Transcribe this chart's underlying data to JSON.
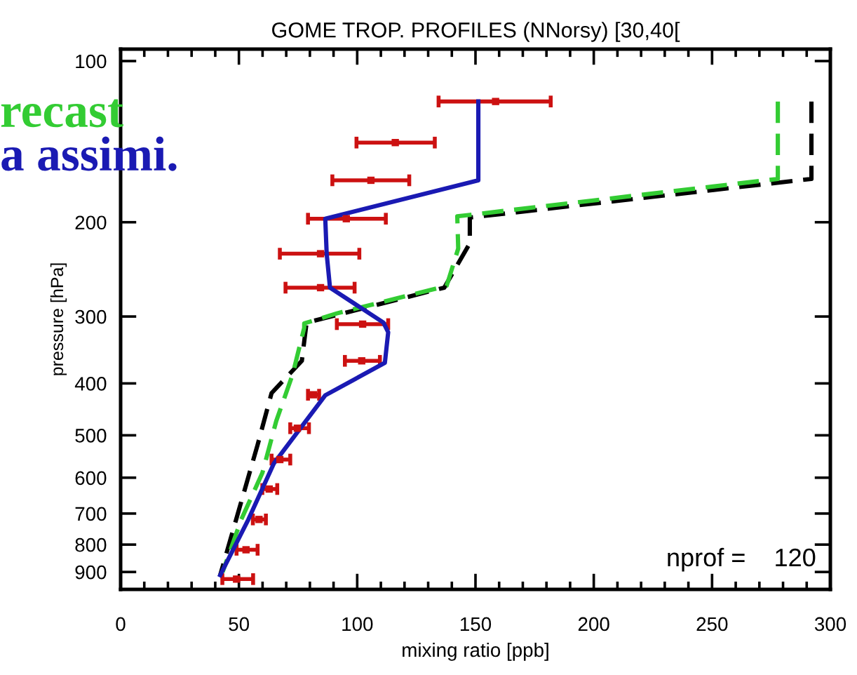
{
  "chart_data": {
    "type": "line",
    "title": "GOME TROP. PROFILES (NNorsy) [30,40[",
    "xlabel": "mixing ratio [ppb]",
    "ylabel": "pressure [hPa]",
    "series": [
      {
        "type": "scatter",
        "marker": "square",
        "color": "#cc1111",
        "x": [
          158.5,
          116.1,
          105.8,
          95.4,
          84.5,
          84.5,
          102.3,
          101.9,
          81.5,
          74.7,
          67.3,
          62.8,
          58.5,
          53.0,
          49.0
        ],
        "values": [
          119,
          142,
          167,
          197,
          229,
          265,
          310,
          363,
          420,
          485,
          555,
          630,
          718,
          818,
          928
        ],
        "xerrors": [
          [
            134.4,
            181.8
          ],
          [
            99.7,
            132.8
          ],
          [
            89.5,
            122.0
          ],
          [
            79.2,
            112.1
          ],
          [
            67.3,
            100.9
          ],
          [
            69.7,
            98.9
          ],
          [
            91.4,
            113.1
          ],
          [
            94.8,
            109.6
          ],
          [
            79.2,
            83.9
          ],
          [
            71.7,
            79.6
          ],
          [
            63.8,
            71.7
          ],
          [
            59.9,
            66.2
          ],
          [
            55.9,
            61.4
          ],
          [
            49.0,
            57.9
          ],
          [
            43.0,
            56.0
          ]
        ]
      },
      {
        "color": "#000000",
        "line_style": "dashed",
        "x": [
          292.0,
          292.0,
          286.7,
          147.6,
          147.6,
          136.8,
          78.6,
          76.6,
          63.8,
          57.9,
          50.0,
          42.1
        ],
        "values": [
          119,
          166,
          167,
          196,
          219,
          265,
          308,
          363,
          417,
          521,
          689,
          912
        ]
      },
      {
        "name": "recast",
        "color": "#33cc33",
        "line_style": "dashed",
        "x": [
          277.8,
          277.8,
          142.3,
          142.7,
          137.8,
          91.4,
          77.6,
          77.6,
          72.7,
          65.8,
          59.9,
          51.0,
          43.1
        ],
        "values": [
          119,
          166,
          195,
          224,
          263,
          296,
          309,
          315,
          385,
          470,
          588,
          718,
          901
        ]
      },
      {
        "name": "a assimi.",
        "color": "#1a1ab3",
        "line_style": "solid",
        "x": [
          151.2,
          151.2,
          86.5,
          87.1,
          88.5,
          111.1,
          113.1,
          111.7,
          86.5,
          64.8,
          54.0,
          42.1
        ],
        "values": [
          119,
          167,
          197,
          229,
          265,
          308,
          321,
          366,
          421,
          564,
          718,
          912
        ]
      }
    ],
    "xlim": [
      0,
      300
    ],
    "xticks": [
      0,
      50,
      100,
      150,
      200,
      250,
      300
    ],
    "ylim": [
      970,
      95
    ],
    "yticks": [
      100,
      200,
      300,
      400,
      500,
      600,
      700,
      800,
      900
    ],
    "log": "y",
    "grid": false,
    "legend": false,
    "annotations": [
      "nprof =    120"
    ]
  }
}
